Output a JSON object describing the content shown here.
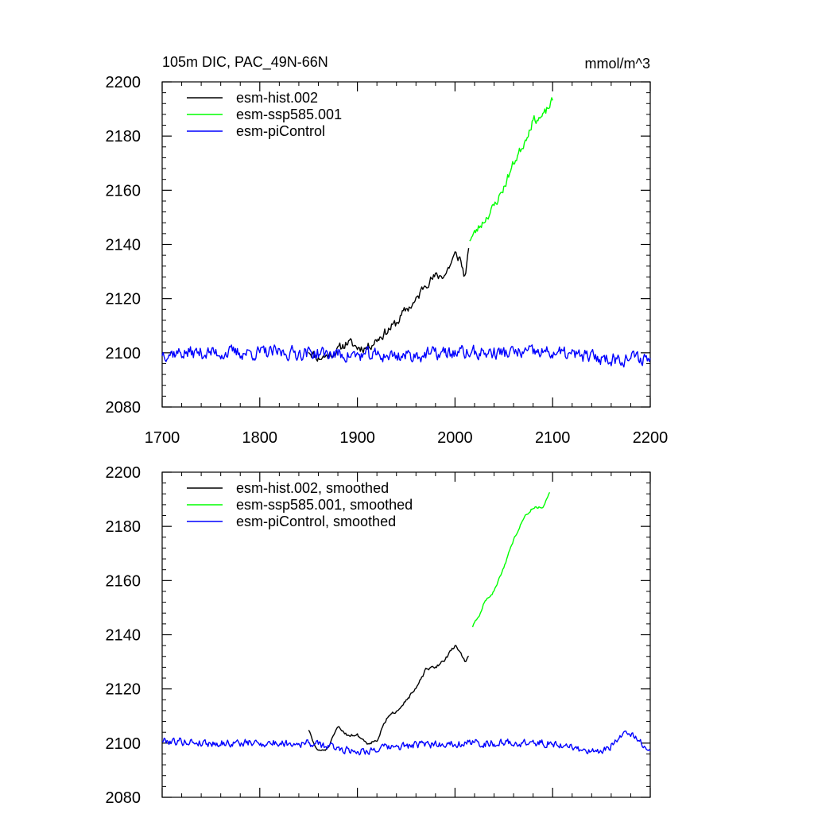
{
  "figure": {
    "title_left": "105m DIC, PAC_49N-66N",
    "title_right": "mmol/m^3"
  },
  "chart_data": [
    {
      "type": "line",
      "xlim": [
        1700,
        2200
      ],
      "ylim": [
        2080,
        2200
      ],
      "x_ticks": [
        1700,
        1800,
        1900,
        2000,
        2100,
        2200
      ],
      "y_ticks": [
        2080,
        2100,
        2120,
        2140,
        2160,
        2180,
        2200
      ],
      "show_x_tick_labels": true,
      "grid": false,
      "legend_position": "top-left",
      "series": [
        {
          "name": "esm-hist.002",
          "color": "#000000",
          "noise": 2.8,
          "seed": 11,
          "points": [
            [
              1850,
              2101
            ],
            [
              1860,
              2098
            ],
            [
              1870,
              2099
            ],
            [
              1880,
              2101
            ],
            [
              1890,
              2104
            ],
            [
              1900,
              2102
            ],
            [
              1910,
              2102
            ],
            [
              1920,
              2105
            ],
            [
              1930,
              2108
            ],
            [
              1940,
              2111
            ],
            [
              1950,
              2116
            ],
            [
              1960,
              2119
            ],
            [
              1970,
              2126
            ],
            [
              1980,
              2128
            ],
            [
              1990,
              2129
            ],
            [
              2000,
              2136
            ],
            [
              2005,
              2135
            ],
            [
              2010,
              2128
            ],
            [
              2014,
              2137
            ]
          ]
        },
        {
          "name": "esm-ssp585.001",
          "color": "#00ff00",
          "noise": 2.6,
          "seed": 23,
          "points": [
            [
              2015,
              2142
            ],
            [
              2020,
              2144
            ],
            [
              2030,
              2149
            ],
            [
              2040,
              2154
            ],
            [
              2050,
              2161
            ],
            [
              2060,
              2170
            ],
            [
              2070,
              2177
            ],
            [
              2080,
              2186
            ],
            [
              2090,
              2187
            ],
            [
              2100,
              2193
            ]
          ]
        },
        {
          "name": "esm-piControl",
          "color": "#0000ff",
          "noise": 4.0,
          "seed": 37,
          "points": [
            [
              1700,
              2100
            ],
            [
              1750,
              2100
            ],
            [
              1800,
              2100
            ],
            [
              1850,
              2100
            ],
            [
              1900,
              2099
            ],
            [
              1950,
              2099
            ],
            [
              2000,
              2100
            ],
            [
              2050,
              2100
            ],
            [
              2100,
              2100
            ],
            [
              2150,
              2098
            ],
            [
              2200,
              2098
            ]
          ]
        }
      ]
    },
    {
      "type": "line",
      "xlim": [
        1700,
        2200
      ],
      "ylim": [
        2080,
        2200
      ],
      "x_ticks": [
        1700,
        1800,
        1900,
        2000,
        2100,
        2200
      ],
      "y_ticks": [
        2080,
        2100,
        2120,
        2140,
        2160,
        2180,
        2200
      ],
      "show_x_tick_labels": false,
      "grid": false,
      "legend_position": "top-left",
      "series": [
        {
          "name": "esm-hist.002, smoothed",
          "color": "#000000",
          "noise": 0.9,
          "seed": 51,
          "points": [
            [
              1850,
              2105
            ],
            [
              1855,
              2100
            ],
            [
              1860,
              2097
            ],
            [
              1870,
              2098
            ],
            [
              1880,
              2106
            ],
            [
              1890,
              2103
            ],
            [
              1900,
              2103
            ],
            [
              1910,
              2100
            ],
            [
              1920,
              2101
            ],
            [
              1930,
              2109
            ],
            [
              1940,
              2112
            ],
            [
              1950,
              2116
            ],
            [
              1960,
              2120
            ],
            [
              1970,
              2127
            ],
            [
              1980,
              2128
            ],
            [
              1990,
              2131
            ],
            [
              2000,
              2136
            ],
            [
              2005,
              2134
            ],
            [
              2010,
              2130
            ],
            [
              2014,
              2132
            ]
          ]
        },
        {
          "name": "esm-ssp585.001, smoothed",
          "color": "#00ff00",
          "noise": 0.7,
          "seed": 63,
          "points": [
            [
              2018,
              2143
            ],
            [
              2025,
              2147
            ],
            [
              2030,
              2152
            ],
            [
              2040,
              2156
            ],
            [
              2050,
              2165
            ],
            [
              2060,
              2175
            ],
            [
              2070,
              2183
            ],
            [
              2080,
              2187
            ],
            [
              2090,
              2187
            ],
            [
              2097,
              2193
            ]
          ]
        },
        {
          "name": "esm-piControl, smoothed",
          "color": "#0000ff",
          "noise": 2.3,
          "seed": 79,
          "points": [
            [
              1700,
              2101
            ],
            [
              1750,
              2100
            ],
            [
              1800,
              2100
            ],
            [
              1850,
              2100
            ],
            [
              1900,
              2097
            ],
            [
              1950,
              2099
            ],
            [
              2000,
              2100
            ],
            [
              2050,
              2100
            ],
            [
              2100,
              2100
            ],
            [
              2150,
              2096
            ],
            [
              2175,
              2104
            ],
            [
              2200,
              2098
            ]
          ]
        }
      ]
    }
  ]
}
